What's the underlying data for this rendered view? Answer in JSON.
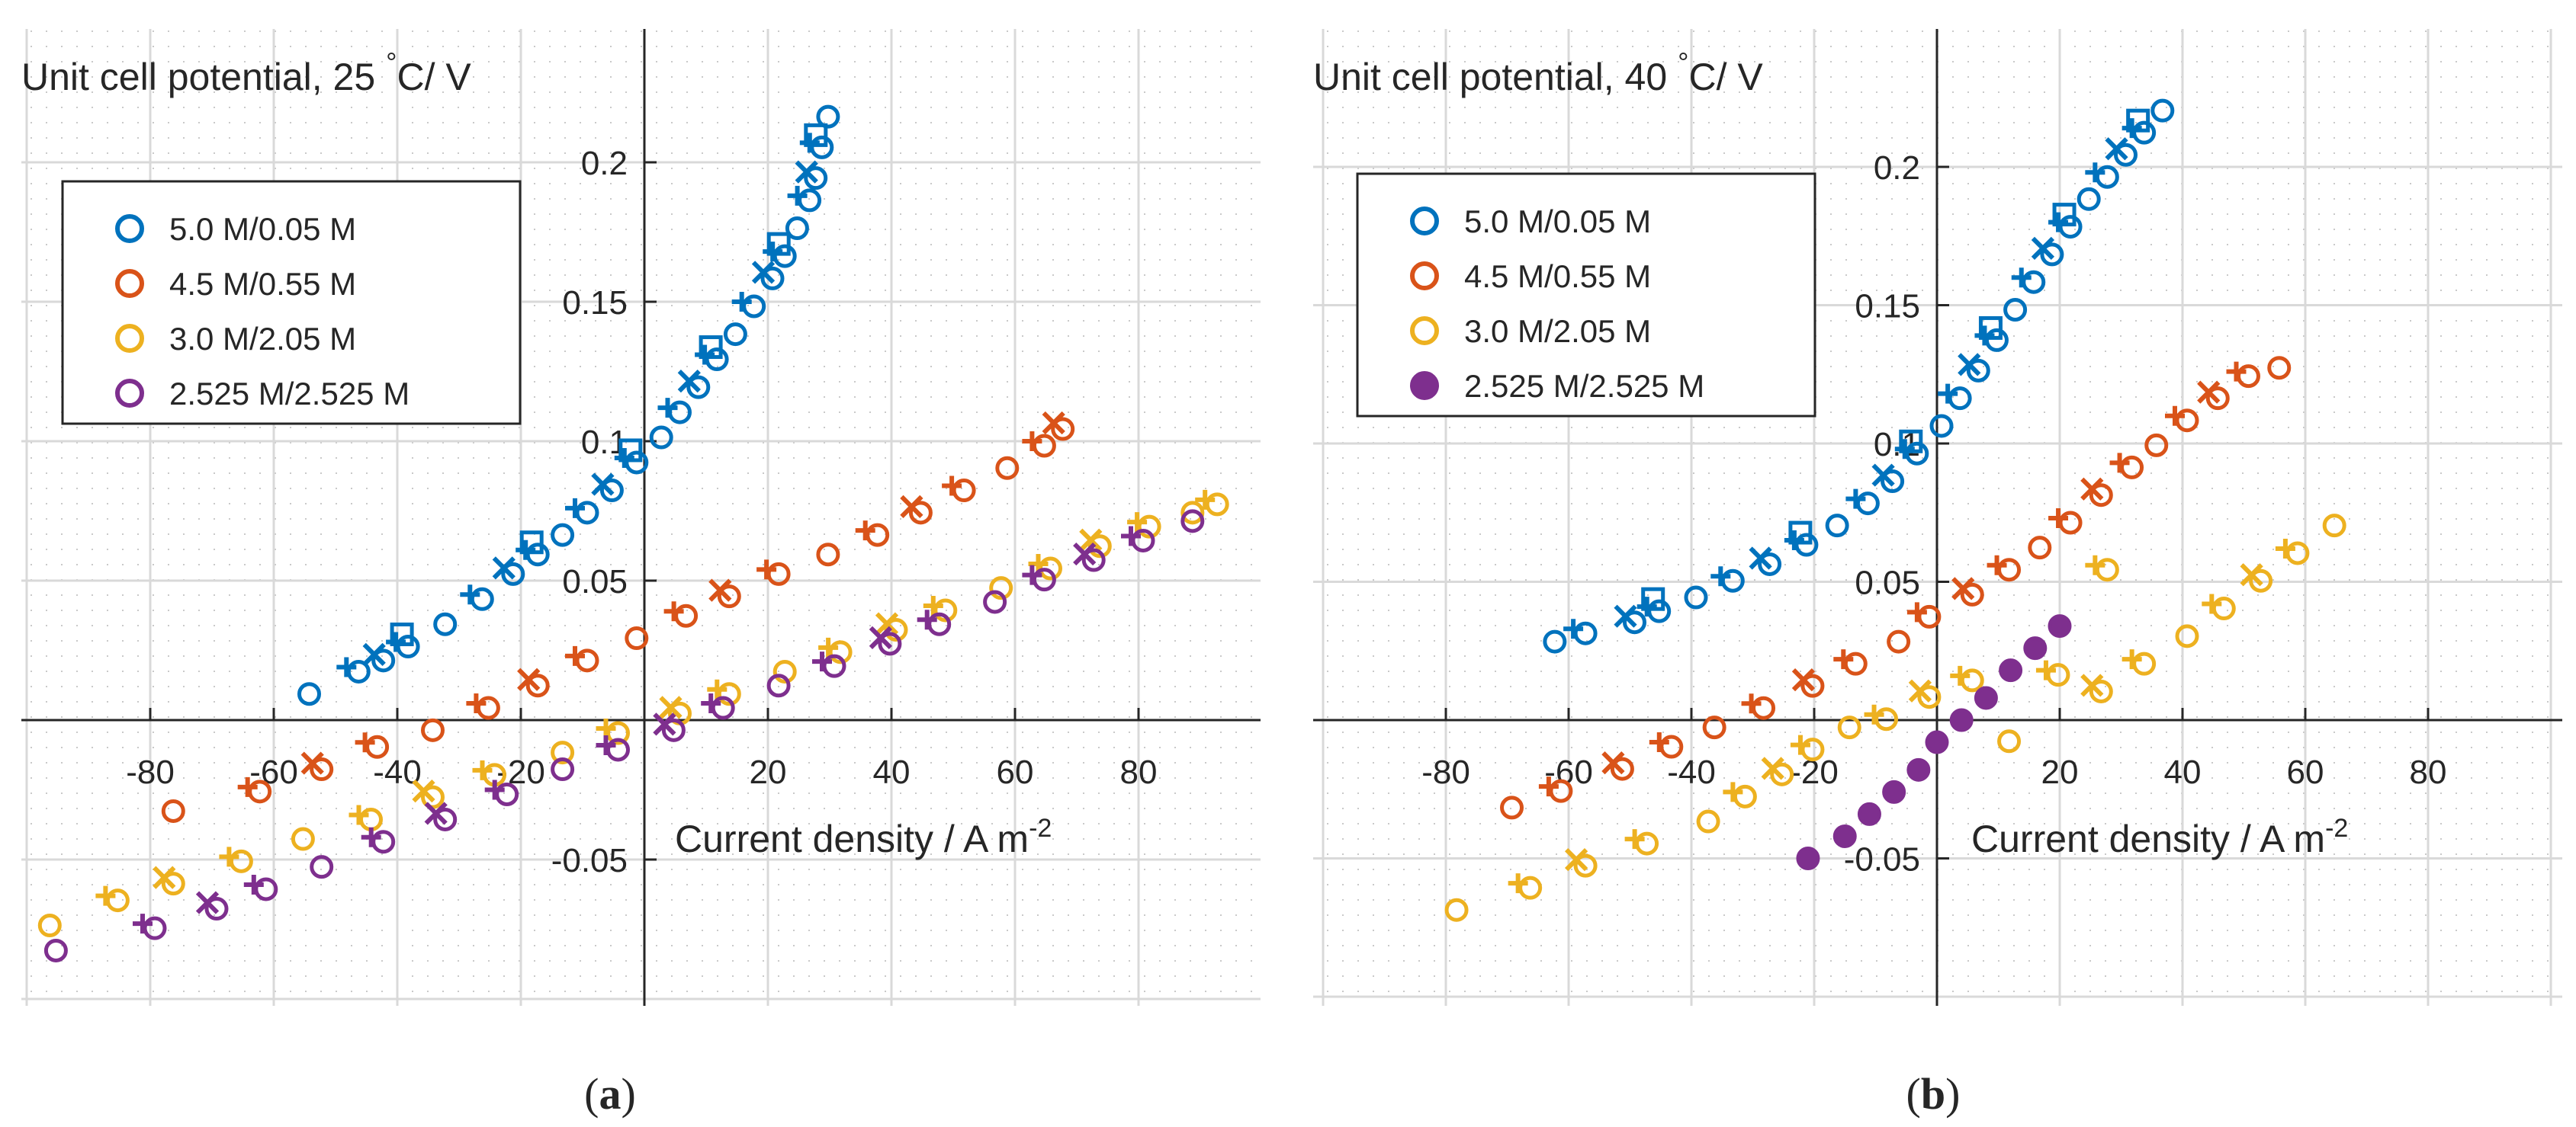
{
  "chart_data": [
    {
      "type": "scatter",
      "panel": "a",
      "caption_open": "(",
      "caption_letter": "a",
      "caption_close": ")",
      "ylabel": "Unit cell potential, 25",
      "ylabel_deg": "°",
      "ylabel_unit": "C/ V",
      "xlabel": "Current density / A m",
      "xlabel_exp": "-2",
      "xlim": [
        -100,
        100
      ],
      "ylim": [
        -0.1,
        0.245
      ],
      "xticks": [
        -80,
        -60,
        -40,
        -20,
        20,
        40,
        60,
        80
      ],
      "xtick_labels": [
        "-80",
        "-60",
        "-40",
        "-20",
        "20",
        "40",
        "60",
        "80"
      ],
      "yticks": [
        -0.05,
        0.05,
        0.1,
        0.15,
        0.2
      ],
      "ytick_labels": [
        "-0.05",
        "0.05",
        "0.1",
        "0.15",
        "0.2"
      ],
      "grid": true,
      "legend_loc": "upper-left",
      "series": [
        {
          "name": "5.0 M/0.05 M",
          "color": "#0072BD",
          "points": [
            [
              -55,
              0.011
            ],
            [
              -47,
              0.019
            ],
            [
              -43,
              0.023
            ],
            [
              -39,
              0.028
            ],
            [
              -33,
              0.036
            ],
            [
              -27,
              0.045
            ],
            [
              -22,
              0.054
            ],
            [
              -18,
              0.061
            ],
            [
              -14,
              0.068
            ],
            [
              -10,
              0.076
            ],
            [
              -6,
              0.084
            ],
            [
              -2,
              0.094
            ],
            [
              2,
              0.103
            ],
            [
              5,
              0.112
            ],
            [
              8,
              0.121
            ],
            [
              11,
              0.131
            ],
            [
              14,
              0.14
            ],
            [
              17,
              0.15
            ],
            [
              20,
              0.16
            ],
            [
              22,
              0.168
            ],
            [
              24,
              0.178
            ],
            [
              26,
              0.188
            ],
            [
              27,
              0.196
            ],
            [
              28,
              0.207
            ],
            [
              29,
              0.218
            ]
          ]
        },
        {
          "name": "4.5 M/0.55 M",
          "color": "#D95319",
          "points": [
            [
              -77,
              -0.031
            ],
            [
              -63,
              -0.024
            ],
            [
              -53,
              -0.016
            ],
            [
              -44,
              -0.008
            ],
            [
              -35,
              -0.002
            ],
            [
              -26,
              0.006
            ],
            [
              -18,
              0.014
            ],
            [
              -10,
              0.023
            ],
            [
              -2,
              0.031
            ],
            [
              6,
              0.039
            ],
            [
              13,
              0.046
            ],
            [
              21,
              0.054
            ],
            [
              29,
              0.061
            ],
            [
              37,
              0.068
            ],
            [
              44,
              0.076
            ],
            [
              51,
              0.084
            ],
            [
              58,
              0.092
            ],
            [
              64,
              0.1
            ],
            [
              67,
              0.106
            ]
          ]
        },
        {
          "name": "3.0 M/2.05 M",
          "color": "#EDB120",
          "points": [
            [
              -97,
              -0.072
            ],
            [
              -86,
              -0.063
            ],
            [
              -77,
              -0.057
            ],
            [
              -66,
              -0.049
            ],
            [
              -56,
              -0.041
            ],
            [
              -45,
              -0.034
            ],
            [
              -35,
              -0.026
            ],
            [
              -25,
              -0.018
            ],
            [
              -14,
              -0.01
            ],
            [
              -5,
              -0.003
            ],
            [
              5,
              0.004
            ],
            [
              13,
              0.011
            ],
            [
              22,
              0.019
            ],
            [
              31,
              0.026
            ],
            [
              40,
              0.034
            ],
            [
              48,
              0.041
            ],
            [
              57,
              0.049
            ],
            [
              65,
              0.056
            ],
            [
              73,
              0.064
            ],
            [
              81,
              0.071
            ],
            [
              88,
              0.076
            ],
            [
              92,
              0.079
            ]
          ]
        },
        {
          "name": "2.525 M/2.525 M",
          "color": "#7E2F8E",
          "points": [
            [
              -96,
              -0.081
            ],
            [
              -80,
              -0.073
            ],
            [
              -70,
              -0.066
            ],
            [
              -62,
              -0.059
            ],
            [
              -53,
              -0.051
            ],
            [
              -43,
              -0.042
            ],
            [
              -33,
              -0.034
            ],
            [
              -23,
              -0.025
            ],
            [
              -14,
              -0.016
            ],
            [
              -5,
              -0.009
            ],
            [
              4,
              -0.002
            ],
            [
              12,
              0.006
            ],
            [
              21,
              0.014
            ],
            [
              30,
              0.021
            ],
            [
              39,
              0.029
            ],
            [
              47,
              0.036
            ],
            [
              56,
              0.044
            ],
            [
              64,
              0.052
            ],
            [
              72,
              0.059
            ],
            [
              80,
              0.066
            ],
            [
              88,
              0.073
            ]
          ]
        }
      ]
    },
    {
      "type": "scatter",
      "panel": "b",
      "caption_open": "(",
      "caption_letter": "b",
      "caption_close": ")",
      "ylabel": "Unit cell potential, 40",
      "ylabel_deg": "°",
      "ylabel_unit": "C/ V",
      "xlabel": "Current density / A m",
      "xlabel_exp": "-2",
      "xlim": [
        -100,
        100
      ],
      "ylim": [
        -0.1,
        0.245
      ],
      "xticks": [
        -80,
        -60,
        -40,
        -20,
        20,
        40,
        60,
        80
      ],
      "xtick_labels": [
        "-80",
        "-60",
        "-40",
        "-20",
        "20",
        "40",
        "60",
        "80"
      ],
      "yticks": [
        -0.05,
        0.05,
        0.1,
        0.15,
        0.2
      ],
      "ytick_labels": [
        "-0.05",
        "0.05",
        "0.1",
        "0.15",
        "0.2"
      ],
      "grid": true,
      "legend_loc": "upper-left",
      "series": [
        {
          "name": "5.0 M/0.05 M",
          "color": "#0072BD",
          "points": [
            [
              -63,
              0.03
            ],
            [
              -58,
              0.033
            ],
            [
              -50,
              0.037
            ],
            [
              -46,
              0.041
            ],
            [
              -40,
              0.046
            ],
            [
              -34,
              0.052
            ],
            [
              -28,
              0.058
            ],
            [
              -22,
              0.065
            ],
            [
              -17,
              0.072
            ],
            [
              -12,
              0.08
            ],
            [
              -8,
              0.088
            ],
            [
              -4,
              0.098
            ],
            [
              0,
              0.108
            ],
            [
              3,
              0.118
            ],
            [
              6,
              0.128
            ],
            [
              9,
              0.139
            ],
            [
              12,
              0.15
            ],
            [
              15,
              0.16
            ],
            [
              18,
              0.17
            ],
            [
              21,
              0.18
            ],
            [
              24,
              0.19
            ],
            [
              27,
              0.198
            ],
            [
              30,
              0.206
            ],
            [
              33,
              0.214
            ],
            [
              36,
              0.222
            ]
          ]
        },
        {
          "name": "4.5 M/0.55 M",
          "color": "#D95319",
          "points": [
            [
              -70,
              -0.03
            ],
            [
              -62,
              -0.024
            ],
            [
              -52,
              -0.016
            ],
            [
              -44,
              -0.008
            ],
            [
              -37,
              -0.001
            ],
            [
              -29,
              0.006
            ],
            [
              -21,
              0.014
            ],
            [
              -14,
              0.022
            ],
            [
              -7,
              0.03
            ],
            [
              -2,
              0.039
            ],
            [
              5,
              0.047
            ],
            [
              11,
              0.056
            ],
            [
              16,
              0.064
            ],
            [
              21,
              0.073
            ],
            [
              26,
              0.083
            ],
            [
              31,
              0.093
            ],
            [
              35,
              0.101
            ],
            [
              40,
              0.11
            ],
            [
              45,
              0.118
            ],
            [
              50,
              0.126
            ],
            [
              55,
              0.129
            ]
          ]
        },
        {
          "name": "3.0 M/2.05 M",
          "color": "#EDB120",
          "points": [
            [
              -79,
              -0.067
            ],
            [
              -67,
              -0.059
            ],
            [
              -58,
              -0.051
            ],
            [
              -48,
              -0.043
            ],
            [
              -38,
              -0.035
            ],
            [
              -32,
              -0.026
            ],
            [
              -26,
              -0.018
            ],
            [
              -21,
              -0.009
            ],
            [
              -15,
              -0.001
            ],
            [
              -9,
              0.002
            ],
            [
              -2,
              0.01
            ],
            [
              5,
              0.016
            ],
            [
              11,
              -0.006
            ],
            [
              19,
              0.018
            ],
            [
              26,
              0.012
            ],
            [
              33,
              0.022
            ],
            [
              40,
              0.032
            ],
            [
              46,
              0.042
            ],
            [
              52,
              0.052
            ],
            [
              58,
              0.062
            ],
            [
              64,
              0.072
            ],
            [
              27,
              0.056
            ]
          ]
        },
        {
          "name": "2.525 M/2.525 M",
          "color": "#7E2F8E",
          "points": [
            [
              -21,
              -0.05
            ],
            [
              -15,
              -0.042
            ],
            [
              -11,
              -0.034
            ],
            [
              -7,
              -0.026
            ],
            [
              -3,
              -0.018
            ],
            [
              0,
              -0.008
            ],
            [
              4,
              0.0
            ],
            [
              8,
              0.008
            ],
            [
              12,
              0.018
            ],
            [
              16,
              0.026
            ],
            [
              20,
              0.034
            ]
          ]
        }
      ]
    }
  ]
}
